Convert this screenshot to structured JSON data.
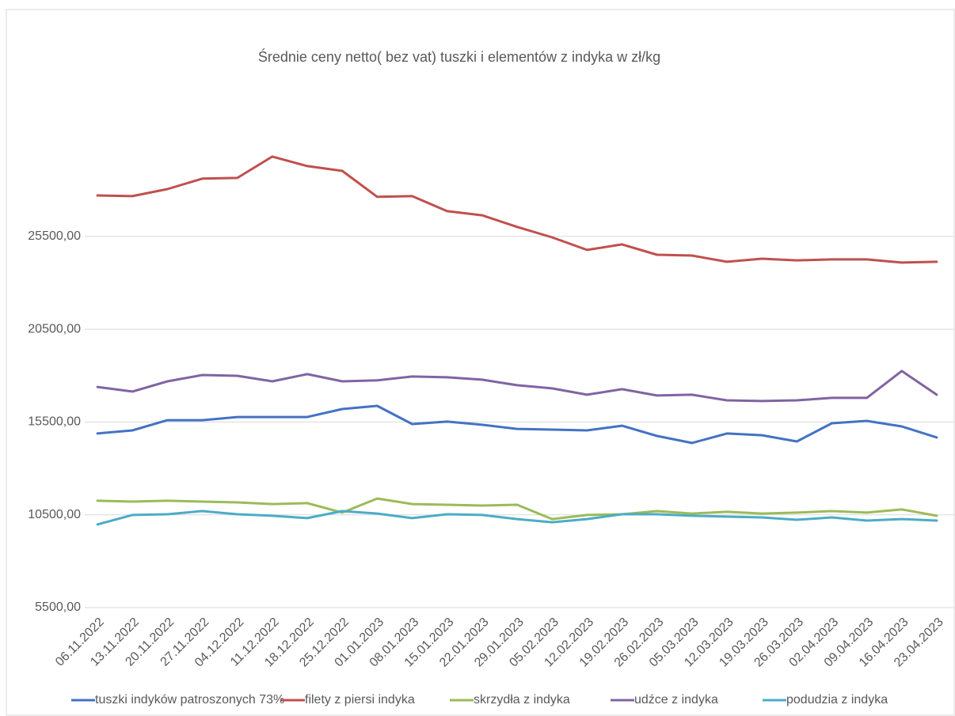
{
  "chart_data": {
    "type": "line",
    "title": "Średnie ceny netto( bez vat) tuszki i elementów z indyka w zł/kg",
    "categories": [
      "06.11.2022",
      "13.11.2022",
      "20.11.2022",
      "27.11.2022",
      "04.12.2022",
      "11.12.2022",
      "18.12.2022",
      "25.12.2022",
      "01.01.2023",
      "08.01.2023",
      "15.01.2023",
      "22.01.2023",
      "29.01.2023",
      "05.02.2023",
      "12.02.2023",
      "19.02.2023",
      "26.02.2023",
      "05.03.2023",
      "12.03.2023",
      "19.03.2023",
      "26.03.2023",
      "02.04.2023",
      "09.04.2023",
      "16.04.2023",
      "23.04.2023"
    ],
    "series": [
      {
        "name": "tuszki indyków patroszonych 73%",
        "color": "#4472c4",
        "values": [
          14880,
          15050,
          15600,
          15600,
          15770,
          15770,
          15770,
          16200,
          16370,
          15390,
          15520,
          15350,
          15130,
          15090,
          15050,
          15300,
          14750,
          14370,
          14880,
          14790,
          14450,
          15430,
          15560,
          15260,
          14670
        ]
      },
      {
        "name": "filety z piersi indyka",
        "color": "#c0504d",
        "values": [
          27710,
          27670,
          28050,
          28610,
          28650,
          29800,
          29290,
          29030,
          27630,
          27670,
          26860,
          26640,
          26010,
          25450,
          24770,
          25070,
          24510,
          24470,
          24130,
          24300,
          24210,
          24260,
          24260,
          24090,
          24130
        ]
      },
      {
        "name": "skrzydła z indyka",
        "color": "#9bbb59",
        "values": [
          11260,
          11210,
          11260,
          11210,
          11170,
          11080,
          11130,
          10620,
          11380,
          11080,
          11040,
          11000,
          11040,
          10270,
          10490,
          10530,
          10700,
          10570,
          10660,
          10570,
          10620,
          10700,
          10620,
          10790,
          10450
        ]
      },
      {
        "name": "udźce z indyka",
        "color": "#8064a2",
        "values": [
          17390,
          17140,
          17690,
          18030,
          17990,
          17690,
          18080,
          17690,
          17740,
          17950,
          17910,
          17780,
          17480,
          17310,
          16970,
          17270,
          16930,
          16970,
          16670,
          16630,
          16670,
          16800,
          16800,
          18250,
          16970
        ]
      },
      {
        "name": "podudzia z indyka",
        "color": "#4bacc6",
        "values": [
          9980,
          10490,
          10530,
          10700,
          10530,
          10450,
          10320,
          10700,
          10570,
          10320,
          10530,
          10490,
          10270,
          10100,
          10270,
          10530,
          10530,
          10450,
          10400,
          10360,
          10230,
          10360,
          10190,
          10270,
          10190
        ]
      }
    ],
    "ylim": [
      5500,
      30500
    ],
    "yticks": [
      {
        "value": 5500,
        "label": "5500,00"
      },
      {
        "value": 10500,
        "label": "10500,00"
      },
      {
        "value": 15500,
        "label": "15500,00"
      },
      {
        "value": 20500,
        "label": "20500,00"
      },
      {
        "value": 25500,
        "label": "25500,00"
      }
    ],
    "grid": true,
    "legend": "bottom"
  }
}
